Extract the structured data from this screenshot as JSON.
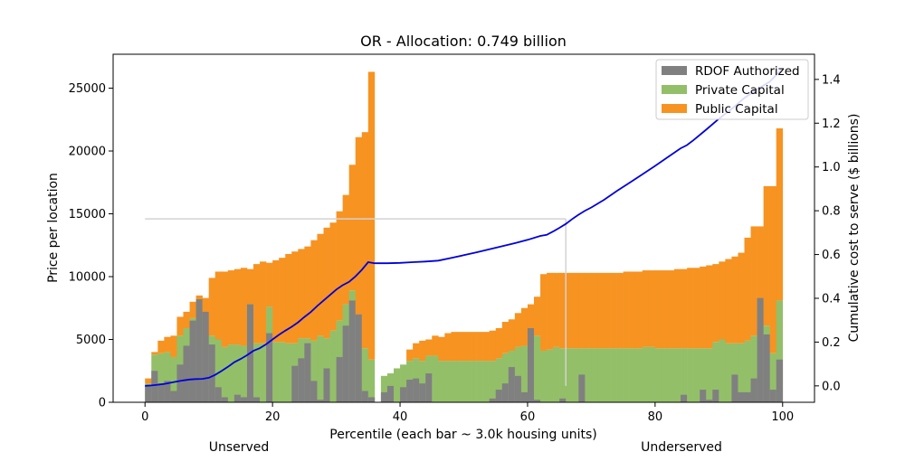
{
  "chart_data": {
    "type": "bar",
    "title": "OR - Allocation: 0.749 billion",
    "xlabel": "Percentile (each bar ~ 3.0k housing units)",
    "ylabel": "Price per location",
    "y2label": "Cumulative cost to serve ($ billions)",
    "xlim": [
      -5,
      105
    ],
    "ylim": [
      0,
      27700
    ],
    "y2lim": [
      -0.075,
      1.515
    ],
    "xticks": [
      0,
      20,
      40,
      60,
      80,
      100
    ],
    "yticks": [
      0,
      5000,
      10000,
      15000,
      20000,
      25000
    ],
    "y2ticks": [
      0.0,
      0.2,
      0.4,
      0.6,
      0.8,
      1.0,
      1.2,
      1.4
    ],
    "segment_labels": [
      "Unserved",
      "Underserved"
    ],
    "legend": [
      "RDOF Authorized",
      "Private Capital",
      "Public Capital"
    ],
    "colors": {
      "rdof": "#808080",
      "private": "#93bf69",
      "public": "#f79321",
      "cumulative": "#0000dd",
      "reference": "#d3d3d3"
    },
    "bar_width": 1.0,
    "series": [
      {
        "name": "RDOF Authorized",
        "x": [
          0.5,
          1.5,
          2.5,
          3.5,
          4.5,
          5.5,
          6.5,
          7.5,
          8.5,
          9.5,
          10.5,
          11.5,
          12.5,
          13.5,
          14.5,
          15.5,
          16.5,
          17.5,
          18.5,
          19.5,
          20.5,
          21.5,
          22.5,
          23.5,
          24.5,
          25.5,
          26.5,
          27.5,
          28.5,
          29.5,
          30.5,
          31.5,
          32.5,
          33.5,
          34.5,
          35.5,
          37.5,
          38.5,
          39.5,
          40.5,
          41.5,
          42.5,
          43.5,
          44.5,
          45.5,
          46.5,
          47.5,
          48.5,
          49.5,
          50.5,
          51.5,
          52.5,
          53.5,
          54.5,
          55.5,
          56.5,
          57.5,
          58.5,
          59.5,
          60.5,
          61.5,
          62.5,
          63.5,
          64.5,
          65.5,
          66.5,
          67.5,
          68.5,
          69.5,
          70.5,
          71.5,
          72.5,
          73.5,
          74.5,
          75.5,
          76.5,
          77.5,
          78.5,
          79.5,
          80.5,
          81.5,
          82.5,
          83.5,
          84.5,
          85.5,
          86.5,
          87.5,
          88.5,
          89.5,
          90.5,
          91.5,
          92.5,
          93.5,
          94.5,
          95.5,
          96.5,
          97.5,
          98.5,
          99.5,
          100.5
        ],
        "values": [
          1300,
          2500,
          1500,
          1700,
          900,
          3000,
          4500,
          6500,
          8200,
          7200,
          4600,
          1200,
          400,
          0,
          600,
          400,
          7800,
          400,
          0,
          5500,
          0,
          0,
          0,
          2900,
          3500,
          4700,
          1700,
          200,
          2700,
          0,
          3600,
          6100,
          8100,
          7000,
          900,
          400,
          800,
          1300,
          0,
          1200,
          1800,
          1900,
          1500,
          2300,
          0,
          0,
          0,
          0,
          0,
          0,
          0,
          0,
          0,
          300,
          1000,
          1500,
          2800,
          2100,
          800,
          5900,
          200,
          0,
          0,
          0,
          300,
          0,
          0,
          2200,
          0,
          0,
          0,
          0,
          0,
          0,
          0,
          0,
          0,
          0,
          0,
          0,
          0,
          0,
          0,
          600,
          0,
          0,
          1000,
          200,
          1000,
          0,
          0,
          2200,
          800,
          800,
          1900,
          8300,
          5400,
          1000,
          3400,
          0
        ]
      },
      {
        "name": "Private Capital",
        "x": [
          0.5,
          1.5,
          2.5,
          3.5,
          4.5,
          5.5,
          6.5,
          7.5,
          8.5,
          9.5,
          10.5,
          11.5,
          12.5,
          13.5,
          14.5,
          15.5,
          16.5,
          17.5,
          18.5,
          19.5,
          20.5,
          21.5,
          22.5,
          23.5,
          24.5,
          25.5,
          26.5,
          27.5,
          28.5,
          29.5,
          30.5,
          31.5,
          32.5,
          33.5,
          34.5,
          35.5,
          37.5,
          38.5,
          39.5,
          40.5,
          41.5,
          42.5,
          43.5,
          44.5,
          45.5,
          46.5,
          47.5,
          48.5,
          49.5,
          50.5,
          51.5,
          52.5,
          53.5,
          54.5,
          55.5,
          56.5,
          57.5,
          58.5,
          59.5,
          60.5,
          61.5,
          62.5,
          63.5,
          64.5,
          65.5,
          66.5,
          67.5,
          68.5,
          69.5,
          70.5,
          71.5,
          72.5,
          73.5,
          74.5,
          75.5,
          76.5,
          77.5,
          78.5,
          79.5,
          80.5,
          81.5,
          82.5,
          83.5,
          84.5,
          85.5,
          86.5,
          87.5,
          88.5,
          89.5,
          90.5,
          91.5,
          92.5,
          93.5,
          94.5,
          95.5,
          96.5,
          97.5,
          98.5,
          99.5,
          100.5
        ],
        "values": [
          1500,
          3800,
          3900,
          4000,
          3600,
          5300,
          5900,
          6700,
          7300,
          5000,
          5300,
          5000,
          4400,
          4600,
          4600,
          4500,
          7800,
          4700,
          4700,
          7600,
          4800,
          4800,
          4700,
          4700,
          5100,
          5100,
          4900,
          5300,
          5100,
          5700,
          6500,
          7800,
          8900,
          7000,
          4300,
          3400,
          2100,
          2300,
          2700,
          3000,
          3300,
          3500,
          3300,
          3700,
          3700,
          3300,
          3300,
          3300,
          3300,
          3300,
          3300,
          3300,
          3300,
          3300,
          3500,
          3900,
          4100,
          4400,
          4500,
          4800,
          5300,
          4100,
          4200,
          4400,
          4300,
          4300,
          4300,
          4300,
          4300,
          4300,
          4300,
          4300,
          4300,
          4300,
          4300,
          4300,
          4300,
          4400,
          4400,
          4300,
          4300,
          4300,
          4300,
          4300,
          4300,
          4300,
          4300,
          4300,
          4800,
          5000,
          4700,
          4700,
          4700,
          4900,
          5300,
          7400,
          6100,
          3900,
          8100,
          0
        ]
      },
      {
        "name": "Public Capital",
        "x": [
          0.5,
          1.5,
          2.5,
          3.5,
          4.5,
          5.5,
          6.5,
          7.5,
          8.5,
          9.5,
          10.5,
          11.5,
          12.5,
          13.5,
          14.5,
          15.5,
          16.5,
          17.5,
          18.5,
          19.5,
          20.5,
          21.5,
          22.5,
          23.5,
          24.5,
          25.5,
          26.5,
          27.5,
          28.5,
          29.5,
          30.5,
          31.5,
          32.5,
          33.5,
          34.5,
          35.5,
          37.5,
          38.5,
          39.5,
          40.5,
          41.5,
          42.5,
          43.5,
          44.5,
          45.5,
          46.5,
          47.5,
          48.5,
          49.5,
          50.5,
          51.5,
          52.5,
          53.5,
          54.5,
          55.5,
          56.5,
          57.5,
          58.5,
          59.5,
          60.5,
          61.5,
          62.5,
          63.5,
          64.5,
          65.5,
          66.5,
          67.5,
          68.5,
          69.5,
          70.5,
          71.5,
          72.5,
          73.5,
          74.5,
          75.5,
          76.5,
          77.5,
          78.5,
          79.5,
          80.5,
          81.5,
          82.5,
          83.5,
          84.5,
          85.5,
          86.5,
          87.5,
          88.5,
          89.5,
          90.5,
          91.5,
          92.5,
          93.5,
          94.5,
          95.5,
          96.5,
          97.5,
          98.5,
          99.5,
          100.5
        ],
        "values": [
          400,
          200,
          1000,
          1200,
          1700,
          1500,
          1300,
          1300,
          1200,
          3300,
          4600,
          5400,
          6000,
          5900,
          6000,
          6200,
          2800,
          6300,
          6500,
          3500,
          6500,
          6700,
          7100,
          7300,
          7100,
          7300,
          8000,
          8100,
          8800,
          8600,
          8700,
          8700,
          10000,
          14100,
          17200,
          22900,
          0,
          0,
          0,
          0,
          900,
          1200,
          1600,
          1300,
          1600,
          1900,
          2200,
          2300,
          2300,
          2300,
          2300,
          2300,
          2300,
          2400,
          2400,
          2500,
          2500,
          2700,
          3000,
          3000,
          3100,
          6100,
          6100,
          5900,
          6000,
          6000,
          6000,
          6000,
          6000,
          6000,
          6000,
          6000,
          6000,
          6000,
          6100,
          6100,
          6100,
          6100,
          6100,
          6200,
          6200,
          6200,
          6300,
          6300,
          6400,
          6400,
          6500,
          6600,
          6200,
          6200,
          6700,
          6900,
          7200,
          8200,
          8700,
          6600,
          11100,
          13300,
          13700,
          0
        ]
      },
      {
        "name": "Cumulative cost to serve",
        "x": [
          0,
          1,
          2,
          3,
          4,
          5,
          6,
          7,
          8,
          9,
          10,
          11,
          12,
          13,
          14,
          15,
          16,
          17,
          18,
          19,
          20,
          21,
          22,
          23,
          24,
          25,
          26,
          27,
          28,
          29,
          30,
          31,
          32,
          33,
          34,
          35,
          36,
          38,
          40,
          42,
          44,
          46,
          48,
          50,
          52,
          54,
          56,
          58,
          60,
          62,
          63,
          64,
          65,
          66,
          67,
          68,
          69,
          70,
          72,
          74,
          76,
          78,
          80,
          82,
          84,
          85,
          86,
          88,
          90,
          92,
          94,
          96,
          98,
          99,
          100
        ],
        "values": [
          0.0,
          0.002,
          0.005,
          0.009,
          0.014,
          0.02,
          0.025,
          0.029,
          0.031,
          0.032,
          0.037,
          0.05,
          0.068,
          0.087,
          0.108,
          0.123,
          0.14,
          0.16,
          0.172,
          0.19,
          0.212,
          0.233,
          0.252,
          0.27,
          0.29,
          0.315,
          0.337,
          0.365,
          0.39,
          0.415,
          0.44,
          0.46,
          0.475,
          0.5,
          0.53,
          0.565,
          0.56,
          0.56,
          0.562,
          0.565,
          0.568,
          0.572,
          0.584,
          0.597,
          0.61,
          0.624,
          0.638,
          0.652,
          0.667,
          0.685,
          0.69,
          0.705,
          0.722,
          0.74,
          0.762,
          0.782,
          0.8,
          0.815,
          0.85,
          0.89,
          0.928,
          0.966,
          1.005,
          1.045,
          1.085,
          1.1,
          1.122,
          1.17,
          1.22,
          1.265,
          1.315,
          1.355,
          1.39,
          1.42,
          1.45
        ]
      }
    ],
    "reference_lines": [
      {
        "orientation": "horizontal",
        "x_from": 0,
        "x_to": 66,
        "y2": 0.763
      },
      {
        "orientation": "vertical",
        "x": 66,
        "y2_from": 0.0,
        "y2_to": 0.763
      }
    ]
  }
}
